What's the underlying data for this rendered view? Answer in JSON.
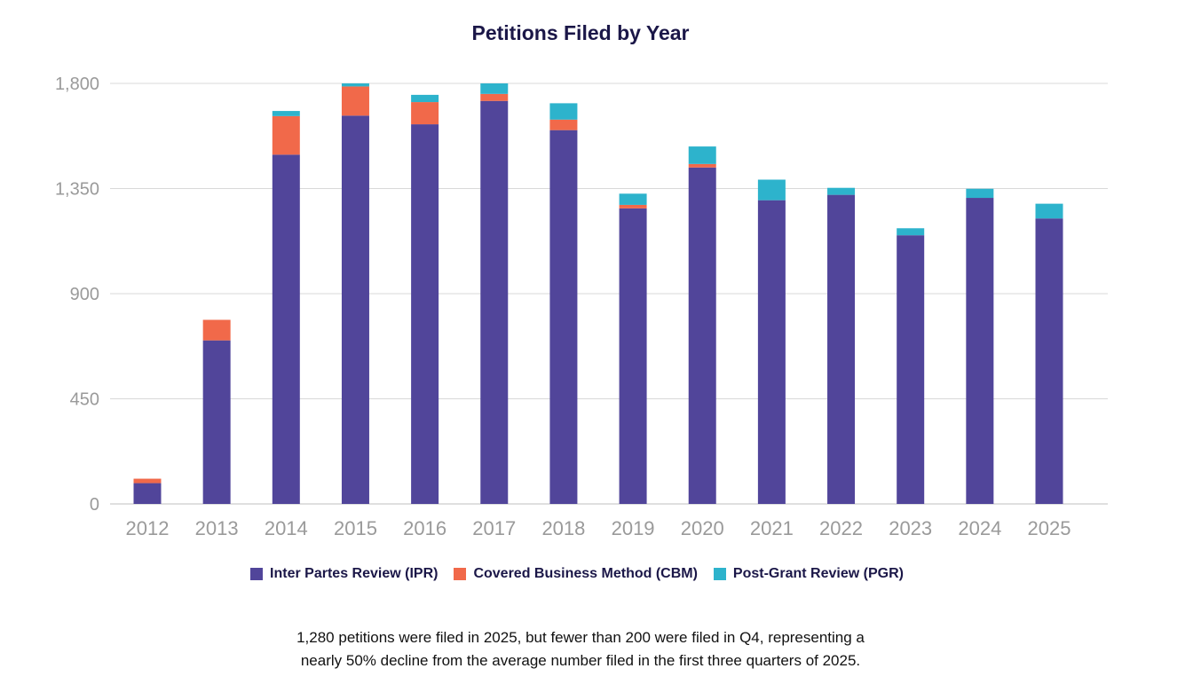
{
  "title": "Petitions Filed by Year",
  "chart_data": {
    "type": "bar",
    "stacked": true,
    "title": "Petitions Filed by Year",
    "categories": [
      "2012",
      "2013",
      "2014",
      "2015",
      "2016",
      "2017",
      "2018",
      "2019",
      "2020",
      "2021",
      "2022",
      "2023",
      "2024",
      "2025"
    ],
    "series": [
      {
        "name": "Inter Partes Review (IPR)",
        "color": "#51459a",
        "values": [
          89,
          700,
          1495,
          1662,
          1625,
          1725,
          1600,
          1265,
          1440,
          1300,
          1323,
          1150,
          1310,
          1222
        ]
      },
      {
        "name": "Covered Business Method (CBM)",
        "color": "#f1694a",
        "values": [
          19,
          88,
          165,
          125,
          95,
          30,
          45,
          15,
          15,
          0,
          0,
          0,
          0,
          0
        ]
      },
      {
        "name": "Post-Grant Review (PGR)",
        "color": "#2db3cc",
        "values": [
          0,
          0,
          22,
          13,
          31,
          45,
          70,
          48,
          75,
          88,
          30,
          30,
          39,
          63
        ]
      }
    ],
    "yticks": [
      "0",
      "450",
      "900",
      "1,350",
      "1,800"
    ],
    "ylim": [
      0,
      1800
    ],
    "grid": true,
    "legend": "bottom"
  },
  "caption": {
    "line1": "1,280 petitions were filed in 2025, but fewer than 200 were filed in Q4, representing a",
    "line2": "nearly 50% decline from the average number filed in the first three quarters of 2025."
  }
}
